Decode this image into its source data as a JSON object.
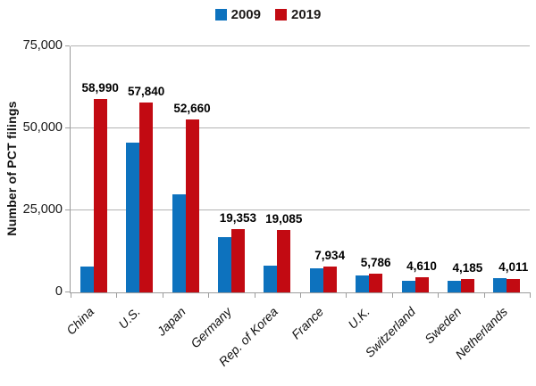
{
  "chart_data": {
    "type": "bar",
    "title": "",
    "xlabel": "",
    "ylabel": "Number of PCT filings",
    "ylim": [
      0,
      75000
    ],
    "yticks": [
      0,
      25000,
      50000,
      75000
    ],
    "ytick_labels": [
      "0",
      "25,000",
      "50,000",
      "75,000"
    ],
    "grid": "horizontal",
    "legend_position": "top-center",
    "categories": [
      "China",
      "U.S.",
      "Japan",
      "Germany",
      "Rep. of Korea",
      "France",
      "U.K.",
      "Switzerland",
      "Sweden",
      "Netherlands"
    ],
    "series": [
      {
        "name": "2009",
        "color": "#0d72be",
        "values": [
          7900,
          45618,
          29802,
          16797,
          8035,
          7237,
          5044,
          3672,
          3567,
          4462
        ],
        "labels": null
      },
      {
        "name": "2019",
        "color": "#c20a12",
        "values": [
          58990,
          57840,
          52660,
          19353,
          19085,
          7934,
          5786,
          4610,
          4185,
          4011
        ],
        "labels": [
          "58,990",
          "57,840",
          "52,660",
          "19,353",
          "19,085",
          "7,934",
          "5,786",
          "4,610",
          "4,185",
          "4,011"
        ]
      }
    ],
    "colors": {
      "gridline": "#b3b3b3",
      "axis": "#9c9c9c",
      "data_label": "#000000",
      "tick_label": "#161616"
    }
  }
}
